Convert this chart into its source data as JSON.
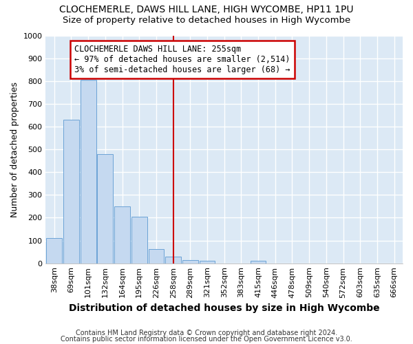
{
  "title": "CLOCHEMERLE, DAWS HILL LANE, HIGH WYCOMBE, HP11 1PU",
  "subtitle": "Size of property relative to detached houses in High Wycombe",
  "xlabel": "Distribution of detached houses by size in High Wycombe",
  "ylabel": "Number of detached properties",
  "footer_line1": "Contains HM Land Registry data © Crown copyright and database right 2024.",
  "footer_line2": "Contains public sector information licensed under the Open Government Licence v3.0.",
  "bar_labels": [
    "38sqm",
    "69sqm",
    "101sqm",
    "132sqm",
    "164sqm",
    "195sqm",
    "226sqm",
    "258sqm",
    "289sqm",
    "321sqm",
    "352sqm",
    "383sqm",
    "415sqm",
    "446sqm",
    "478sqm",
    "509sqm",
    "540sqm",
    "572sqm",
    "603sqm",
    "635sqm",
    "666sqm"
  ],
  "bar_heights": [
    110,
    630,
    805,
    480,
    250,
    205,
    62,
    30,
    15,
    10,
    0,
    0,
    10,
    0,
    0,
    0,
    0,
    0,
    0,
    0,
    0
  ],
  "bar_color": "#c5d9f0",
  "bar_edge_color": "#6ba3d6",
  "property_line_x": 7,
  "annotation_title": "CLOCHEMERLE DAWS HILL LANE: 255sqm",
  "annotation_line1": "← 97% of detached houses are smaller (2,514)",
  "annotation_line2": "3% of semi-detached houses are larger (68) →",
  "annotation_box_color": "#ffffff",
  "annotation_box_edge": "#cc0000",
  "vline_color": "#cc0000",
  "ylim": [
    0,
    1000
  ],
  "yticks": [
    0,
    100,
    200,
    300,
    400,
    500,
    600,
    700,
    800,
    900,
    1000
  ],
  "background_color": "#ffffff",
  "plot_bg_color": "#dce9f5",
  "grid_color": "#ffffff",
  "title_fontsize": 10,
  "subtitle_fontsize": 9.5,
  "xlabel_fontsize": 10,
  "ylabel_fontsize": 9,
  "tick_fontsize": 8,
  "annotation_fontsize": 8.5,
  "footer_fontsize": 7
}
